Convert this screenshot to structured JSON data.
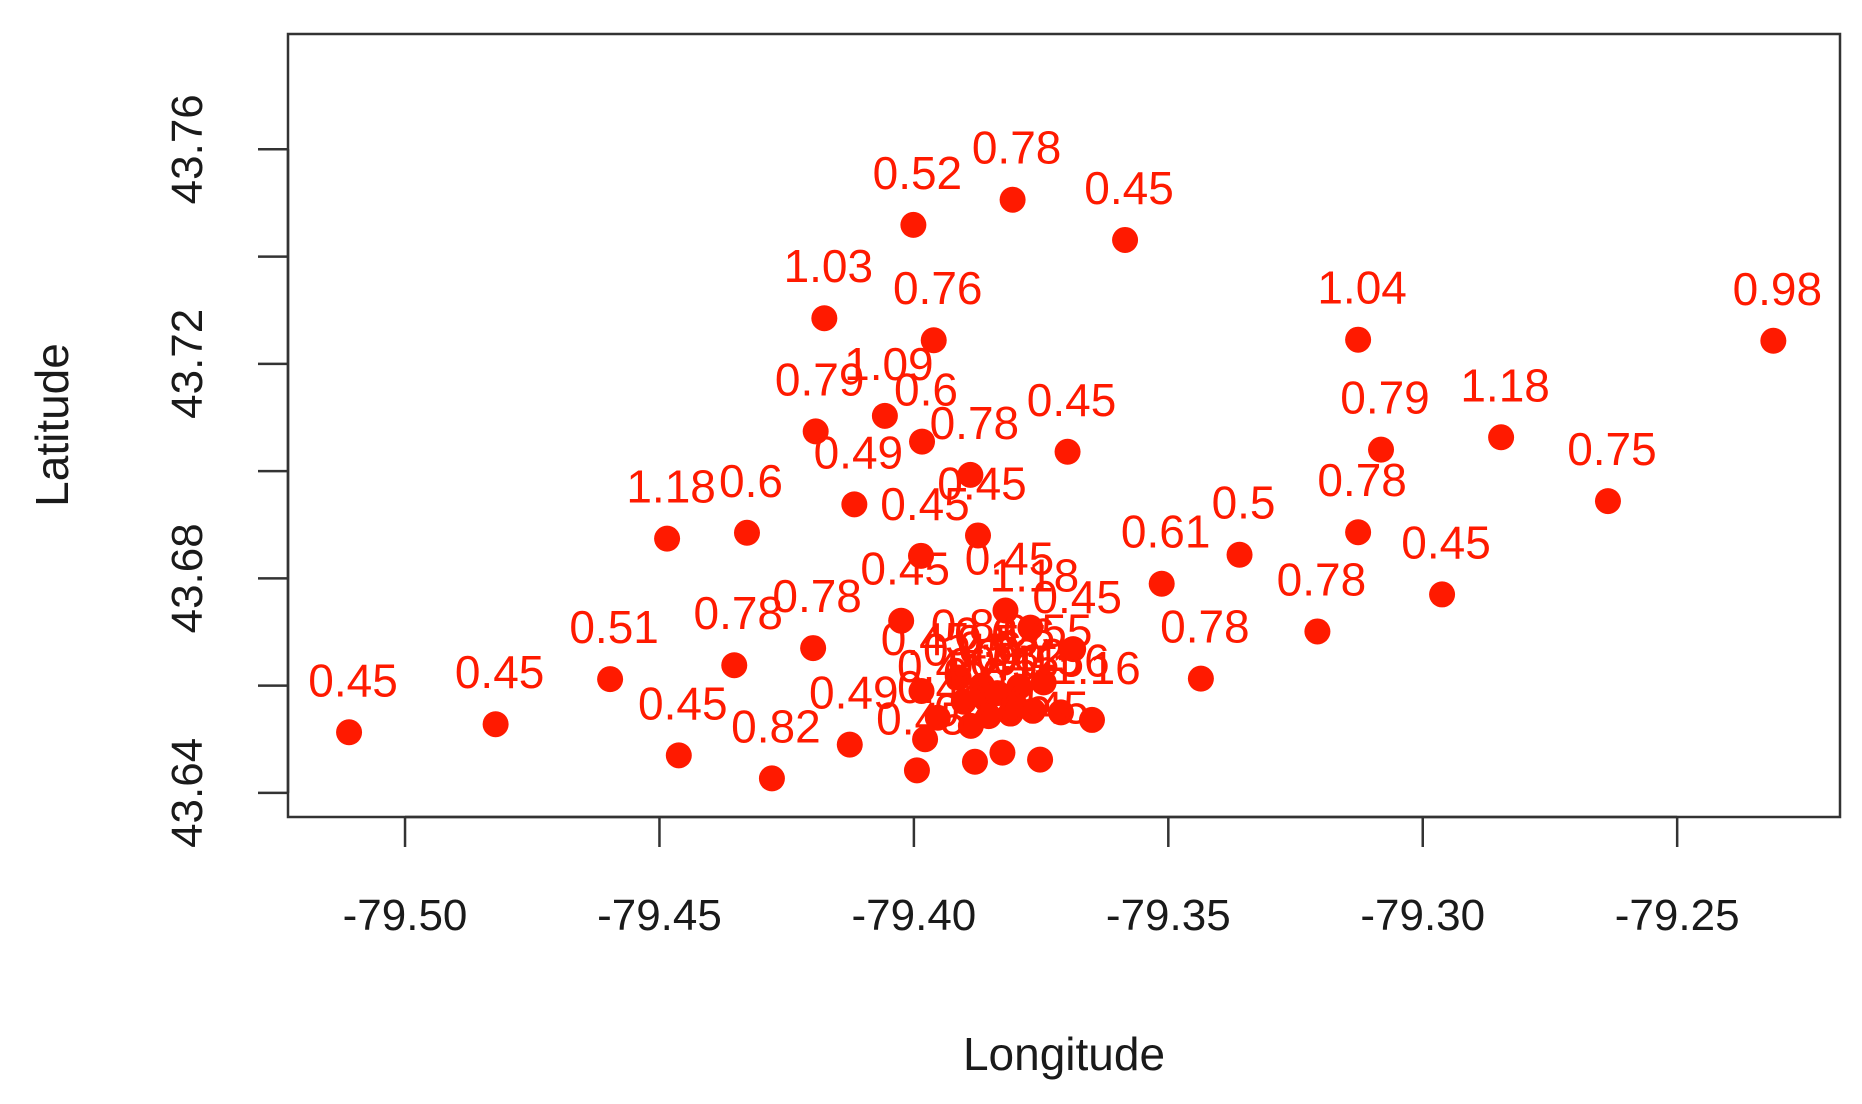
{
  "chart_data": {
    "type": "scatter",
    "title": "",
    "xlabel": "Longitude",
    "ylabel": "Latitude",
    "xlim": [
      -79.523,
      -79.218
    ],
    "ylim": [
      43.6355,
      43.7815
    ],
    "x_ticks": [
      -79.5,
      -79.45,
      -79.4,
      -79.35,
      -79.3,
      -79.25
    ],
    "x_tick_labels": [
      "-79.50",
      "-79.45",
      "-79.40",
      "-79.35",
      "-79.30",
      "-79.25"
    ],
    "y_ticks": [
      43.64,
      43.66,
      43.68,
      43.7,
      43.72,
      43.74,
      43.76
    ],
    "y_tick_labels": [
      "43.64",
      "",
      "43.68",
      "",
      "43.72",
      "",
      "43.76"
    ],
    "grid": false,
    "legend": "none",
    "point_color": "#ff1a00",
    "points": [
      {
        "x": -79.511,
        "y": 43.6513,
        "label": "0.45"
      },
      {
        "x": -79.4822,
        "y": 43.6528,
        "label": "0.45"
      },
      {
        "x": -79.4597,
        "y": 43.6612,
        "label": "0.51"
      },
      {
        "x": -79.4462,
        "y": 43.647,
        "label": "0.45"
      },
      {
        "x": -79.4485,
        "y": 43.6874,
        "label": "1.18"
      },
      {
        "x": -79.4328,
        "y": 43.6885,
        "label": "0.6"
      },
      {
        "x": -79.4353,
        "y": 43.6638,
        "label": "0.78"
      },
      {
        "x": -79.4279,
        "y": 43.6427,
        "label": "0.82"
      },
      {
        "x": -79.4198,
        "y": 43.667,
        "label": "0.78"
      },
      {
        "x": -79.4126,
        "y": 43.649,
        "label": "0.49"
      },
      {
        "x": -79.4117,
        "y": 43.6938,
        "label": "0.49"
      },
      {
        "x": -79.4193,
        "y": 43.7074,
        "label": "0.79"
      },
      {
        "x": -79.4176,
        "y": 43.7285,
        "label": "1.03"
      },
      {
        "x": -79.4001,
        "y": 43.7459,
        "label": "0.52"
      },
      {
        "x": -79.3806,
        "y": 43.7506,
        "label": "0.78"
      },
      {
        "x": -79.3585,
        "y": 43.7431,
        "label": "0.45"
      },
      {
        "x": -79.3961,
        "y": 43.7244,
        "label": "0.76"
      },
      {
        "x": -79.4057,
        "y": 43.7103,
        "label": "1.09"
      },
      {
        "x": -79.3984,
        "y": 43.7055,
        "label": "0.6"
      },
      {
        "x": -79.3889,
        "y": 43.6993,
        "label": "0.78"
      },
      {
        "x": -79.3698,
        "y": 43.7036,
        "label": "0.45"
      },
      {
        "x": -79.3874,
        "y": 43.688,
        "label": "0.45"
      },
      {
        "x": -79.3986,
        "y": 43.6842,
        "label": "0.45"
      },
      {
        "x": -79.4025,
        "y": 43.6721,
        "label": "0.45"
      },
      {
        "x": -79.382,
        "y": 43.674,
        "label": "0.45"
      },
      {
        "x": -79.3771,
        "y": 43.6708,
        "label": "1.18"
      },
      {
        "x": -79.3687,
        "y": 43.6668,
        "label": "0.45"
      },
      {
        "x": -79.3985,
        "y": 43.659,
        "label": "0.45"
      },
      {
        "x": -79.3912,
        "y": 43.6615,
        "label": "0.8"
      },
      {
        "x": -79.3866,
        "y": 43.66,
        "label": "0.8"
      },
      {
        "x": -79.3836,
        "y": 43.6586,
        "label": "0.57"
      },
      {
        "x": -79.3793,
        "y": 43.6598,
        "label": "0.6"
      },
      {
        "x": -79.3745,
        "y": 43.6606,
        "label": "0.55"
      },
      {
        "x": -79.365,
        "y": 43.6536,
        "label": "1.16"
      },
      {
        "x": -79.3711,
        "y": 43.655,
        "label": "0.56"
      },
      {
        "x": -79.3799,
        "y": 43.656,
        "label": "0.82"
      },
      {
        "x": -79.3858,
        "y": 43.6574,
        "label": "0.6"
      },
      {
        "x": -79.3902,
        "y": 43.657,
        "label": "0.45"
      },
      {
        "x": -79.3953,
        "y": 43.654,
        "label": "0.45"
      },
      {
        "x": -79.3888,
        "y": 43.6525,
        "label": "0.6"
      },
      {
        "x": -79.3978,
        "y": 43.65,
        "label": "0.4"
      },
      {
        "x": -79.388,
        "y": 43.6458,
        "label": "0.45"
      },
      {
        "x": -79.3826,
        "y": 43.6475,
        "label": "0.45"
      },
      {
        "x": -79.3752,
        "y": 43.6462,
        "label": "0.45"
      },
      {
        "x": -79.3994,
        "y": 43.6442,
        "label": "0.45"
      },
      {
        "x": -79.3853,
        "y": 43.6543,
        "label": "0.45"
      },
      {
        "x": -79.381,
        "y": 43.6548,
        "label": "0.45"
      },
      {
        "x": -79.3766,
        "y": 43.6553,
        "label": "0.45"
      },
      {
        "x": -79.3513,
        "y": 43.679,
        "label": "0.61"
      },
      {
        "x": -79.3436,
        "y": 43.6613,
        "label": "0.78"
      },
      {
        "x": -79.336,
        "y": 43.6844,
        "label": "0.5"
      },
      {
        "x": -79.3207,
        "y": 43.6701,
        "label": "0.78"
      },
      {
        "x": -79.3127,
        "y": 43.6886,
        "label": "0.78"
      },
      {
        "x": -79.2962,
        "y": 43.677,
        "label": "0.45"
      },
      {
        "x": -79.3127,
        "y": 43.7245,
        "label": "1.04"
      },
      {
        "x": -79.3082,
        "y": 43.704,
        "label": "0.79"
      },
      {
        "x": -79.2846,
        "y": 43.7063,
        "label": "1.18"
      },
      {
        "x": -79.2636,
        "y": 43.6944,
        "label": "0.75"
      },
      {
        "x": -79.2311,
        "y": 43.7243,
        "label": "0.98"
      }
    ]
  }
}
